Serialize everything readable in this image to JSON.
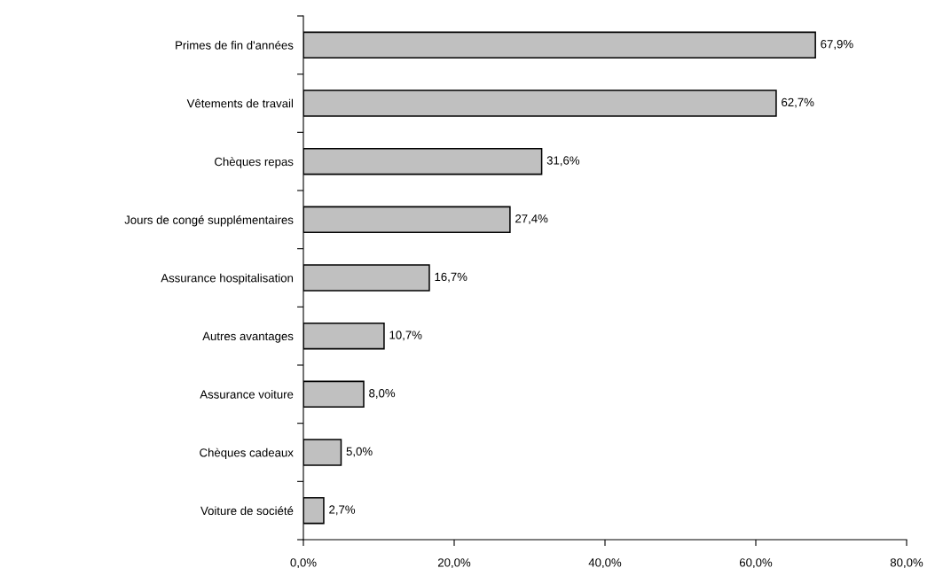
{
  "chart_data": {
    "type": "bar",
    "orientation": "horizontal",
    "categories": [
      "Primes de fin d'années",
      "Vêtements de travail",
      "Chèques repas",
      "Jours de congé supplémentaires",
      "Assurance hospitalisation",
      "Autres avantages",
      "Assurance voiture",
      "Chèques cadeaux",
      "Voiture de société"
    ],
    "values": [
      67.9,
      62.7,
      31.6,
      27.4,
      16.7,
      10.7,
      8.0,
      5.0,
      2.7
    ],
    "value_labels": [
      "67,9%",
      "62,7%",
      "31,6%",
      "27,4%",
      "16,7%",
      "10,7%",
      "8,0%",
      "5,0%",
      "2,7%"
    ],
    "color": "#c0c0c0",
    "xlim": [
      0,
      80
    ],
    "xticks": [
      {
        "value": 0,
        "label": "0,0%"
      },
      {
        "value": 20,
        "label": "20,0%"
      },
      {
        "value": 40,
        "label": "40,0%"
      },
      {
        "value": 60,
        "label": "60,0%"
      },
      {
        "value": 80,
        "label": "80,0%"
      }
    ],
    "grid": false
  }
}
